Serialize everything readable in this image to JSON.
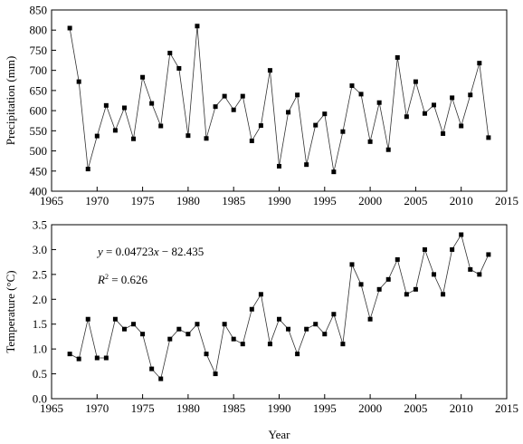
{
  "chart_data": [
    {
      "type": "line",
      "xlabel": "",
      "ylabel": "Precipitation (mm)",
      "xlim": [
        1965,
        2015
      ],
      "ylim": [
        400,
        850
      ],
      "xticks": [
        "1965",
        "1970",
        "1975",
        "1980",
        "1985",
        "1990",
        "1995",
        "2000",
        "2005",
        "2010",
        "2015"
      ],
      "yticks": [
        "400",
        "450",
        "500",
        "550",
        "600",
        "650",
        "700",
        "750",
        "800",
        "850"
      ],
      "marker": "square",
      "series": [
        {
          "x": [
            1967,
            1968,
            1969,
            1970,
            1971,
            1972,
            1973,
            1974,
            1975,
            1976,
            1977,
            1978,
            1979,
            1980,
            1981,
            1982,
            1983,
            1984,
            1985,
            1986,
            1987,
            1988,
            1989,
            1990,
            1991,
            1992,
            1993,
            1994,
            1995,
            1996,
            1997,
            1998,
            1999,
            2000,
            2001,
            2002,
            2003,
            2004,
            2005,
            2006,
            2007,
            2008,
            2009,
            2010,
            2011,
            2012,
            2013
          ],
          "y": [
            805,
            672,
            455,
            537,
            613,
            551,
            607,
            530,
            683,
            618,
            562,
            743,
            705,
            538,
            810,
            531,
            610,
            636,
            602,
            636,
            525,
            563,
            700,
            462,
            596,
            639,
            466,
            564,
            592,
            448,
            548,
            662,
            641,
            523,
            620,
            503,
            732,
            585,
            672,
            593,
            614,
            543,
            632,
            562,
            639,
            718,
            533
          ]
        }
      ]
    },
    {
      "type": "line",
      "xlabel": "Year",
      "ylabel": "Temperature (°C)",
      "xlim": [
        1965,
        2015
      ],
      "ylim": [
        0.0,
        3.5
      ],
      "xticks": [
        "1965",
        "1970",
        "1975",
        "1980",
        "1985",
        "1990",
        "1995",
        "2000",
        "2005",
        "2010",
        "2015"
      ],
      "yticks": [
        "0.0",
        "0.5",
        "1.0",
        "1.5",
        "2.0",
        "2.5",
        "3.0",
        "3.5"
      ],
      "marker": "square",
      "series": [
        {
          "x": [
            1967,
            1968,
            1969,
            1970,
            1971,
            1972,
            1973,
            1974,
            1975,
            1976,
            1977,
            1978,
            1979,
            1980,
            1981,
            1982,
            1983,
            1984,
            1985,
            1986,
            1987,
            1988,
            1989,
            1990,
            1991,
            1992,
            1993,
            1994,
            1995,
            1996,
            1997,
            1998,
            1999,
            2000,
            2001,
            2002,
            2003,
            2004,
            2005,
            2006,
            2007,
            2008,
            2009,
            2010,
            2011,
            2012,
            2013
          ],
          "y": [
            0.9,
            0.8,
            1.6,
            0.82,
            0.82,
            1.6,
            1.4,
            1.5,
            1.3,
            0.6,
            0.4,
            1.2,
            1.4,
            1.3,
            1.5,
            0.9,
            0.5,
            1.5,
            1.2,
            1.1,
            1.8,
            2.1,
            1.1,
            1.6,
            1.4,
            0.9,
            1.4,
            1.5,
            1.3,
            1.7,
            1.1,
            2.7,
            2.3,
            1.6,
            2.2,
            2.4,
            2.8,
            2.1,
            2.2,
            3.0,
            2.5,
            2.1,
            3.0,
            3.3,
            2.6,
            2.5,
            2.9
          ]
        }
      ],
      "trendline": {
        "slope": 0.04723,
        "intercept": -82.435,
        "style": "dotted"
      },
      "annotations": {
        "equation": {
          "y": "y",
          "eq": " = 0.04723",
          "x": "x",
          "rest": " − 82.435"
        },
        "r2": {
          "r": "R",
          "sup": "2",
          "rest": " = 0.626"
        }
      }
    }
  ]
}
